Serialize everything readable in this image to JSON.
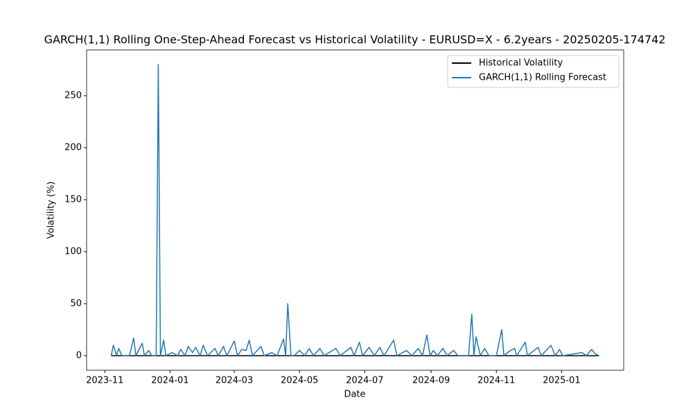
{
  "chart_data": {
    "type": "line",
    "title": "GARCH(1,1) Rolling One-Step-Ahead Forecast vs Historical Volatility - EURUSD=X - 6.2years - 20250205-174742",
    "x_label": "Date",
    "y_label": "Volatility (%)",
    "x": [
      "2023-11-07",
      "2023-11-09",
      "2023-11-12",
      "2023-11-14",
      "2023-11-17",
      "2023-11-24",
      "2023-11-28",
      "2023-11-30",
      "2023-12-04",
      "2023-12-06",
      "2023-12-08",
      "2023-12-12",
      "2023-12-15",
      "2023-12-19",
      "2023-12-21",
      "2023-12-23",
      "2023-12-26",
      "2023-12-28",
      "2024-01-03",
      "2024-01-08",
      "2024-01-11",
      "2024-01-15",
      "2024-01-18",
      "2024-01-22",
      "2024-01-25",
      "2024-01-29",
      "2024-02-01",
      "2024-02-05",
      "2024-02-12",
      "2024-02-15",
      "2024-02-20",
      "2024-02-23",
      "2024-03-01",
      "2024-03-04",
      "2024-03-08",
      "2024-03-12",
      "2024-03-15",
      "2024-03-18",
      "2024-03-26",
      "2024-03-29",
      "2024-04-05",
      "2024-04-10",
      "2024-04-16",
      "2024-04-18",
      "2024-04-20",
      "2024-04-23",
      "2024-04-26",
      "2024-05-01",
      "2024-05-06",
      "2024-05-10",
      "2024-05-14",
      "2024-05-20",
      "2024-05-24",
      "2024-06-04",
      "2024-06-08",
      "2024-06-18",
      "2024-06-21",
      "2024-06-26",
      "2024-06-29",
      "2024-07-05",
      "2024-07-10",
      "2024-07-15",
      "2024-07-19",
      "2024-07-28",
      "2024-07-31",
      "2024-08-09",
      "2024-08-14",
      "2024-08-20",
      "2024-08-24",
      "2024-08-28",
      "2024-08-31",
      "2024-09-03",
      "2024-09-07",
      "2024-09-12",
      "2024-09-16",
      "2024-09-22",
      "2024-09-26",
      "2024-10-06",
      "2024-10-09",
      "2024-10-11",
      "2024-10-13",
      "2024-10-17",
      "2024-10-21",
      "2024-10-25",
      "2024-11-01",
      "2024-11-06",
      "2024-11-08",
      "2024-11-14",
      "2024-11-18",
      "2024-11-20",
      "2024-11-28",
      "2024-11-30",
      "2024-12-10",
      "2024-12-13",
      "2024-12-22",
      "2024-12-26",
      "2024-12-30",
      "2025-01-02",
      "2025-01-20",
      "2025-01-24",
      "2025-01-29",
      "2025-02-01",
      "2025-02-05"
    ],
    "series": [
      {
        "name": "Historical Volatility",
        "color": "#000000",
        "values": [
          0,
          0,
          0,
          0,
          0,
          0,
          0,
          0,
          0,
          0,
          0,
          0,
          0,
          0,
          0,
          0,
          0,
          0,
          0,
          0,
          0,
          0,
          0,
          0,
          0,
          0,
          0,
          0,
          0,
          0,
          0,
          0,
          0,
          0,
          0,
          0,
          0,
          0,
          0,
          0,
          0,
          0,
          0,
          0,
          0,
          0,
          0,
          0,
          0,
          0,
          0,
          0,
          0,
          0,
          0,
          0,
          0,
          0,
          0,
          0,
          0,
          0,
          0,
          0,
          0,
          0,
          0,
          0,
          0,
          0,
          0,
          0,
          0,
          0,
          0,
          0,
          0,
          0,
          0,
          0,
          0,
          0,
          0,
          0,
          0,
          0,
          0,
          0,
          0,
          0,
          0,
          0,
          0,
          0,
          0,
          0,
          0,
          0,
          0,
          0,
          0,
          0,
          0
        ]
      },
      {
        "name": "GARCH(1,1) Rolling Forecast",
        "color": "#1f77b4",
        "values": [
          0,
          10,
          0,
          7,
          0,
          0,
          17,
          0,
          8,
          12,
          0,
          5,
          0,
          0,
          280,
          0,
          15,
          0,
          3,
          0,
          6,
          0,
          9,
          3,
          8,
          0,
          10,
          0,
          7,
          0,
          9,
          0,
          14,
          0,
          6,
          5,
          15,
          0,
          9,
          0,
          3,
          0,
          16,
          0,
          50,
          0,
          0,
          5,
          0,
          7,
          0,
          7,
          0,
          7,
          0,
          8,
          0,
          13,
          0,
          8,
          0,
          8,
          0,
          15,
          0,
          5,
          0,
          7,
          0,
          20,
          0,
          5,
          0,
          7,
          0,
          5,
          0,
          0,
          40,
          0,
          18,
          0,
          7,
          0,
          0,
          25,
          0,
          5,
          7,
          0,
          13,
          0,
          8,
          0,
          10,
          0,
          6,
          0,
          3,
          0,
          6,
          2,
          0
        ]
      }
    ],
    "xlim": [
      "2023-10-15",
      "2025-02-28"
    ],
    "xticks": [
      {
        "value": "2023-11-01",
        "label": "2023-11"
      },
      {
        "value": "2024-01-01",
        "label": "2024-01"
      },
      {
        "value": "2024-03-01",
        "label": "2024-03"
      },
      {
        "value": "2024-05-01",
        "label": "2024-05"
      },
      {
        "value": "2024-07-01",
        "label": "2024-07"
      },
      {
        "value": "2024-09-01",
        "label": "2024-09"
      },
      {
        "value": "2024-11-01",
        "label": "2024-11"
      },
      {
        "value": "2025-01-01",
        "label": "2025-01"
      }
    ],
    "ylim": [
      -14,
      294
    ],
    "yticks": [
      0,
      50,
      100,
      150,
      200,
      250
    ],
    "grid": false,
    "legend": "upper right"
  }
}
